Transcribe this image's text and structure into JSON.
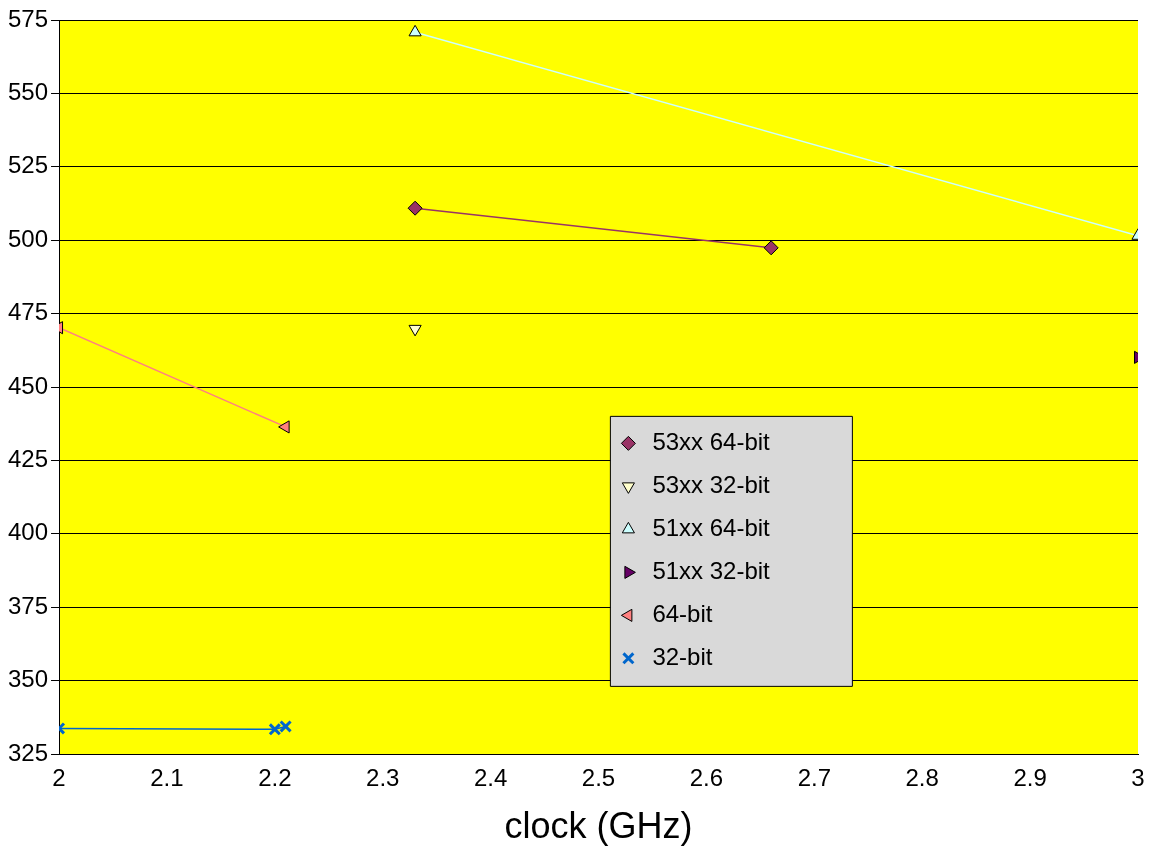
{
  "chart_data": {
    "type": "line",
    "xlabel": "clock (GHz)",
    "xlim": [
      2,
      3
    ],
    "xticks": [
      2,
      2.1,
      2.2,
      2.3,
      2.4,
      2.5,
      2.6,
      2.7,
      2.8,
      2.9,
      3
    ],
    "ylim": [
      325,
      575
    ],
    "yticks": [
      325,
      350,
      375,
      400,
      425,
      450,
      475,
      500,
      525,
      550,
      575
    ],
    "grid": "y",
    "legend": "bottom right",
    "series": [
      {
        "name": "53xx 64-bit",
        "marker": "diamond",
        "color": "#993366",
        "x": [
          2.33,
          2.66
        ],
        "values": [
          510.9,
          497.4
        ]
      },
      {
        "name": "53xx 32-bit",
        "marker": "triangle",
        "color": "#ffffcc",
        "x": [
          2.33
        ],
        "values": [
          469.8
        ]
      },
      {
        "name": "51xx 64-bit",
        "marker": "triangle",
        "color": "#ccffff",
        "x": [
          2.33,
          3
        ],
        "values": [
          570.8,
          501.5
        ]
      },
      {
        "name": "51xx 32-bit",
        "marker": "triangle",
        "color": "#660066",
        "x": [
          3
        ],
        "values": [
          460.1
        ]
      },
      {
        "name": "64-bit",
        "marker": "triangle",
        "color": "#ff8080",
        "x": [
          2,
          2.21
        ],
        "values": [
          470.2,
          436.4
        ]
      },
      {
        "name": "32-bit",
        "marker": "cross",
        "color": "#0066cc",
        "x": [
          2,
          2.2,
          2.21
        ],
        "values": [
          333.7,
          333.4,
          334.4
        ]
      }
    ]
  }
}
